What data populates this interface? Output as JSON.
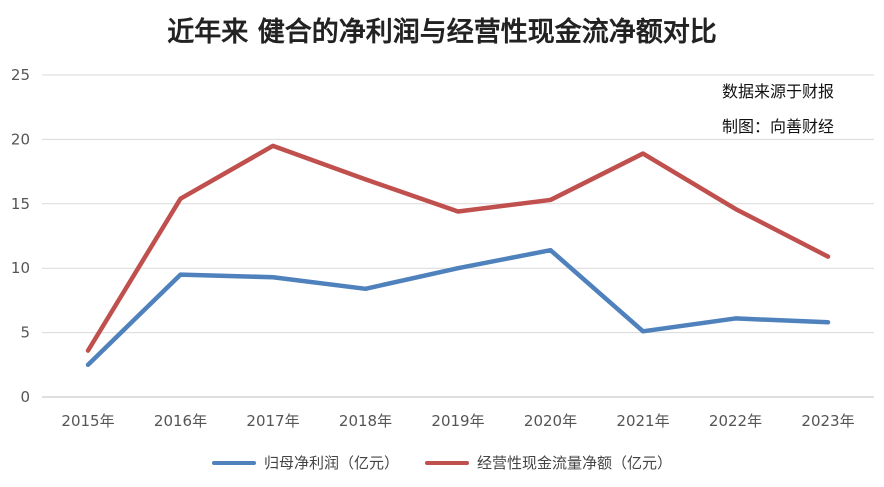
{
  "colors": {
    "series1": "#4f81bd",
    "series2": "#c0504d",
    "grid": "#d9d9d9"
  },
  "chart_data": {
    "type": "line",
    "title": "近年来 健合的净利润与经营性现金流净额对比",
    "notes": [
      "数据来源于财报",
      "制图：向善财经"
    ],
    "categories": [
      "2015年",
      "2016年",
      "2017年",
      "2018年",
      "2019年",
      "2020年",
      "2021年",
      "2022年",
      "2023年"
    ],
    "ylim": [
      0,
      25
    ],
    "yticks": [
      0,
      5,
      10,
      15,
      20,
      25
    ],
    "grid": true,
    "legend_position": "bottom",
    "series": [
      {
        "name": "归母净利润（亿元）",
        "values": [
          2.5,
          9.5,
          9.3,
          8.4,
          10.0,
          11.4,
          5.1,
          6.1,
          5.8
        ]
      },
      {
        "name": "经营性现金流量净额（亿元）",
        "values": [
          3.6,
          15.4,
          19.5,
          16.9,
          14.4,
          15.3,
          18.9,
          14.6,
          10.9
        ]
      }
    ]
  }
}
